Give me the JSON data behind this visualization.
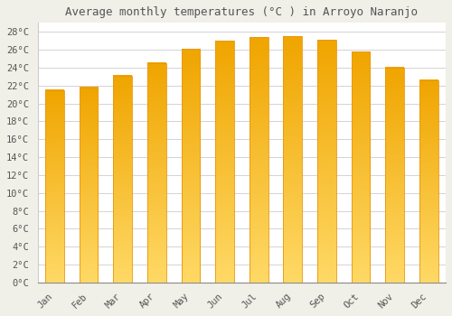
{
  "title": "Average monthly temperatures (°C ) in Arroyo Naranjo",
  "months": [
    "Jan",
    "Feb",
    "Mar",
    "Apr",
    "May",
    "Jun",
    "Jul",
    "Aug",
    "Sep",
    "Oct",
    "Nov",
    "Dec"
  ],
  "values": [
    21.5,
    21.8,
    23.1,
    24.5,
    26.1,
    27.0,
    27.4,
    27.5,
    27.1,
    25.8,
    24.0,
    22.6
  ],
  "bar_color_top": "#FFD966",
  "bar_color_bottom": "#F0A500",
  "bar_edge_color": "#E8960A",
  "background_color": "#F0EFE8",
  "plot_bg_color": "#FFFFFF",
  "grid_color": "#CCCCCC",
  "text_color": "#555555",
  "title_fontsize": 9,
  "tick_fontsize": 7.5,
  "ylim": [
    0,
    29
  ],
  "yticks": [
    0,
    2,
    4,
    6,
    8,
    10,
    12,
    14,
    16,
    18,
    20,
    22,
    24,
    26,
    28
  ],
  "bar_width": 0.55
}
